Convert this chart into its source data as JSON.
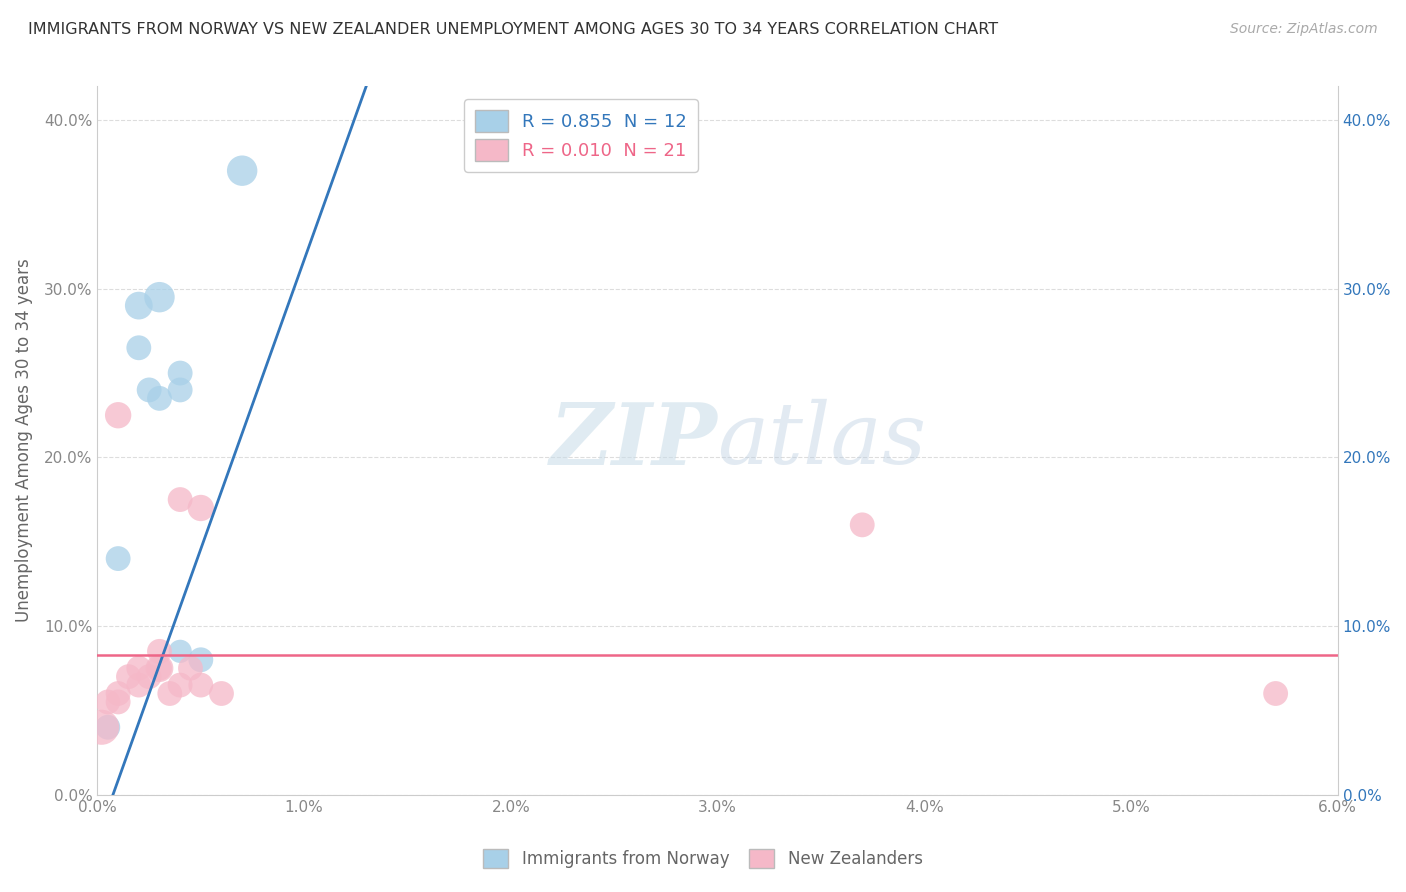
{
  "title": "IMMIGRANTS FROM NORWAY VS NEW ZEALANDER UNEMPLOYMENT AMONG AGES 30 TO 34 YEARS CORRELATION CHART",
  "source": "Source: ZipAtlas.com",
  "ylabel": "Unemployment Among Ages 30 to 34 years",
  "xlim": [
    0.0,
    0.06
  ],
  "ylim": [
    0.0,
    0.42
  ],
  "xticks": [
    0.0,
    0.01,
    0.02,
    0.03,
    0.04,
    0.05,
    0.06
  ],
  "xticklabels": [
    "0.0%",
    "1.0%",
    "2.0%",
    "3.0%",
    "4.0%",
    "5.0%",
    "6.0%"
  ],
  "yticks": [
    0.0,
    0.1,
    0.2,
    0.3,
    0.4
  ],
  "yticklabels": [
    "0.0%",
    "10.0%",
    "20.0%",
    "30.0%",
    "40.0%"
  ],
  "legend_blue_label": "R = 0.855  N = 12",
  "legend_pink_label": "R = 0.010  N = 21",
  "blue_color": "#a8d0e8",
  "pink_color": "#f5b8c8",
  "blue_line_color": "#3377bb",
  "pink_line_color": "#ee6688",
  "watermark_zip": "ZIP",
  "watermark_atlas": "atlas",
  "blue_dots_x": [
    0.0005,
    0.001,
    0.002,
    0.002,
    0.0025,
    0.003,
    0.003,
    0.004,
    0.004,
    0.004,
    0.005,
    0.007
  ],
  "blue_dots_y": [
    0.04,
    0.14,
    0.29,
    0.265,
    0.24,
    0.295,
    0.235,
    0.25,
    0.24,
    0.085,
    0.08,
    0.37
  ],
  "blue_dots_size": [
    40,
    40,
    50,
    40,
    40,
    60,
    40,
    40,
    40,
    35,
    40,
    60
  ],
  "pink_dots_x": [
    0.0002,
    0.0005,
    0.001,
    0.001,
    0.001,
    0.0015,
    0.002,
    0.002,
    0.0025,
    0.003,
    0.003,
    0.003,
    0.0035,
    0.004,
    0.004,
    0.0045,
    0.005,
    0.005,
    0.006,
    0.037,
    0.057
  ],
  "pink_dots_y": [
    0.04,
    0.055,
    0.06,
    0.055,
    0.225,
    0.07,
    0.065,
    0.075,
    0.07,
    0.075,
    0.075,
    0.085,
    0.06,
    0.065,
    0.175,
    0.075,
    0.065,
    0.17,
    0.06,
    0.16,
    0.06
  ],
  "pink_dots_size": [
    80,
    40,
    40,
    40,
    45,
    40,
    40,
    40,
    40,
    50,
    40,
    40,
    40,
    40,
    40,
    40,
    40,
    45,
    40,
    40,
    40
  ],
  "blue_line_x": [
    -0.001,
    0.013
  ],
  "blue_line_y": [
    -0.06,
    0.42
  ],
  "pink_line_x": [
    0.0,
    0.06
  ],
  "pink_line_y": [
    0.083,
    0.083
  ],
  "bg_color": "#ffffff",
  "grid_color": "#dddddd",
  "tick_color": "#888888",
  "spine_color": "#cccccc"
}
